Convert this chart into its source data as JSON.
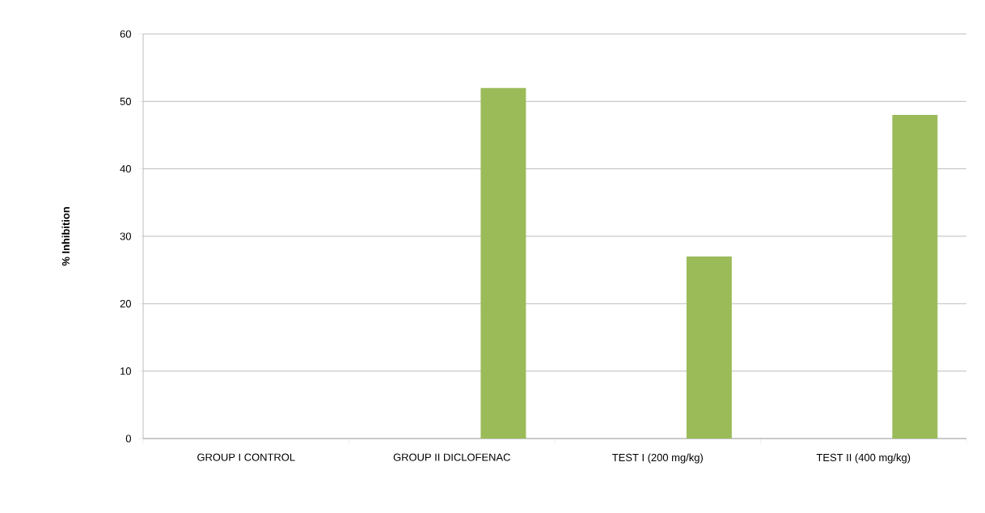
{
  "chart_data": {
    "type": "bar",
    "ylabel": "% Inhibition",
    "categories": [
      "GROUP I CONTROL",
      "GROUP II DICLOFENAC",
      "TEST I (200 mg/kg)",
      "TEST II (400 mg/kg)"
    ],
    "values": [
      0,
      52,
      27,
      48
    ],
    "color": "#9bbb59",
    "ylim": [
      0,
      60
    ],
    "yticks": [
      0,
      10,
      20,
      30,
      40,
      50,
      60
    ],
    "grid": "y"
  }
}
